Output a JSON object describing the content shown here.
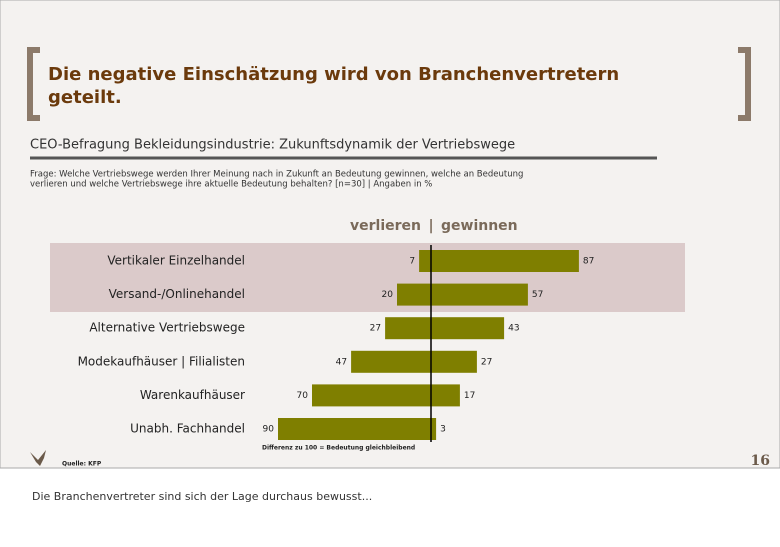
{
  "slide": {
    "title_lines": [
      "Die negative Einschätzung wird von Branchenvertretern",
      "geteilt."
    ],
    "subtitle": "CEO-Befragung Bekleidungsindustrie: Zukunftsdynamik der Vertriebswege",
    "question_lines": [
      "Frage: Welche Vertriebswege werden Ihrer Meinung nach in Zukunft an Bedeutung gewinnen, welche an Bedeutung",
      "verlieren und welche Vertriebswege ihre aktuelle Bedeutung behalten? [n=30] | Angaben in %"
    ],
    "source": "Quelle: KFP",
    "page_number": "16",
    "note_text": "Die Branchenvertreter sind sich der Lage durchaus bewusst..."
  },
  "chart_data": {
    "type": "diverging-bar",
    "categories": [
      "Vertikaler Einzelhandel",
      "Versand-/Onlinehandel",
      "Alternative Vertriebswege",
      "Modekaufhäuser | Filialisten",
      "Warenkaufhäuser",
      "Unabh. Fachhandel"
    ],
    "series": [
      {
        "name": "verlieren",
        "color": "#7f7f00",
        "values": [
          7,
          20,
          27,
          47,
          70,
          90
        ]
      },
      {
        "name": "gewinnen",
        "color": "#7f7f00",
        "values": [
          87,
          57,
          43,
          27,
          17,
          3
        ]
      }
    ],
    "annotation": "Differenz zu 100 = Bedeutung gleichbleibend"
  }
}
